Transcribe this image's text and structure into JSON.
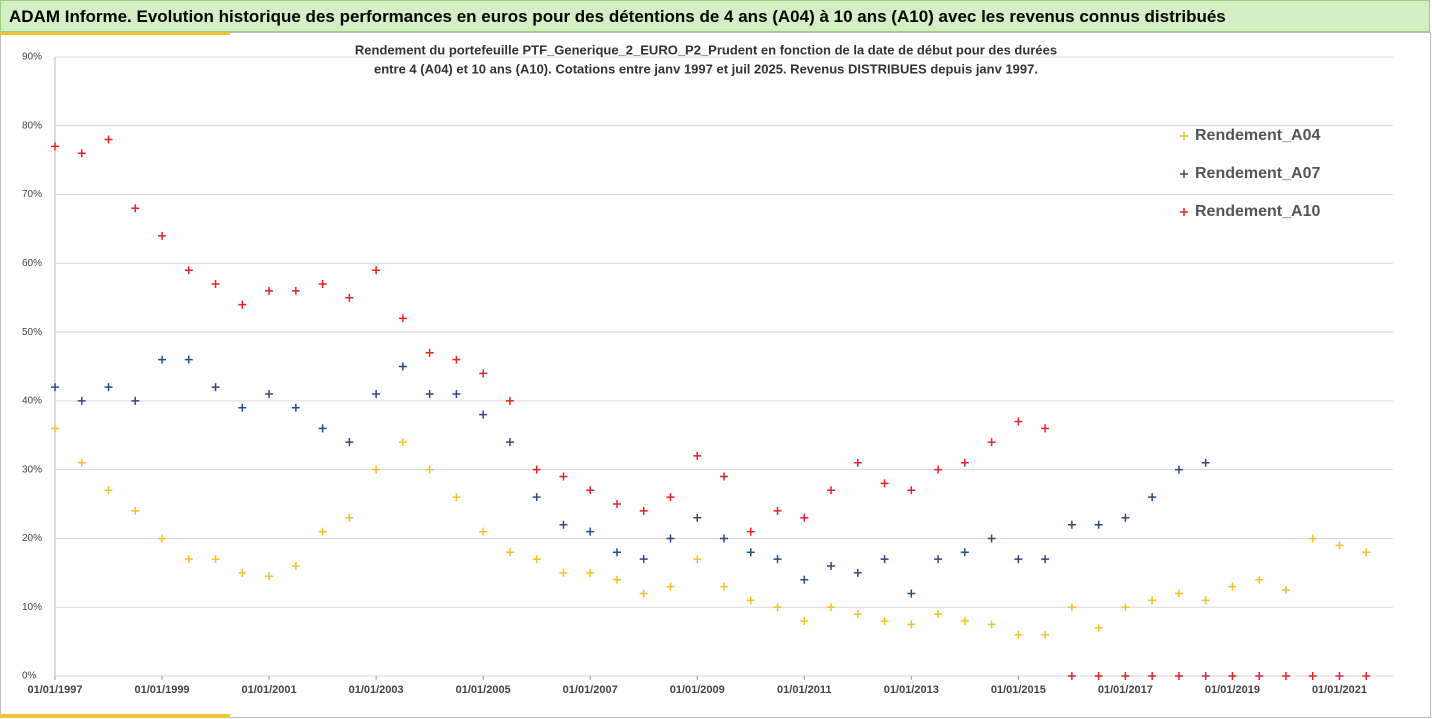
{
  "header": {
    "title": "ADAM Informe. Evolution historique des performances en euros pour des détentions de 4 ans (A04) à 10 ans (A10) avec les revenus connus distribués"
  },
  "chart_data": {
    "type": "scatter",
    "subtitle": [
      "Rendement du portefeuille PTF_Generique_2_EURO_P2_Prudent  en fonction de la date de début pour des durées",
      "entre 4 (A04) et 10 ans (A10). Cotations entre janv 1997 et juil 2025. Revenus DISTRIBUES depuis janv 1997."
    ],
    "x": [
      "01/01/1997",
      "01/07/1997",
      "01/01/1998",
      "01/07/1998",
      "01/01/1999",
      "01/07/1999",
      "01/01/2000",
      "01/07/2000",
      "01/01/2001",
      "01/07/2001",
      "01/01/2002",
      "01/07/2002",
      "01/01/2003",
      "01/07/2003",
      "01/01/2004",
      "01/07/2004",
      "01/01/2005",
      "01/07/2005",
      "01/01/2006",
      "01/07/2006",
      "01/01/2007",
      "01/07/2007",
      "01/01/2008",
      "01/07/2008",
      "01/01/2009",
      "01/07/2009",
      "01/01/2010",
      "01/07/2010",
      "01/01/2011",
      "01/07/2011",
      "01/01/2012",
      "01/07/2012",
      "01/01/2013",
      "01/07/2013",
      "01/01/2014",
      "01/07/2014",
      "01/01/2015",
      "01/07/2015",
      "01/01/2016",
      "01/07/2016",
      "01/01/2017",
      "01/07/2017",
      "01/01/2018",
      "01/07/2018",
      "01/01/2019",
      "01/07/2019",
      "01/01/2020",
      "01/07/2020",
      "01/01/2021",
      "01/07/2021"
    ],
    "series": [
      {
        "name": "Rendement_A04",
        "color": "#f5c02a",
        "values": [
          36,
          31,
          27,
          24,
          20,
          17,
          17,
          15,
          14.5,
          16,
          21,
          23,
          30,
          34,
          30,
          26,
          21,
          18,
          17,
          15,
          15,
          14,
          12,
          13,
          17,
          13,
          11,
          10,
          8,
          10,
          9,
          8,
          7.5,
          9,
          8,
          7.5,
          6,
          6,
          10,
          7,
          10,
          11,
          12,
          11,
          13,
          14,
          12.5,
          20,
          19,
          18
        ]
      },
      {
        "name": "Rendement_A07",
        "color": "#2e4a7a",
        "values": [
          42,
          40,
          42,
          40,
          46,
          46,
          42,
          39,
          41,
          39,
          36,
          34,
          41,
          45,
          41,
          41,
          38,
          34,
          26,
          22,
          21,
          18,
          17,
          20,
          23,
          20,
          18,
          17,
          14,
          16,
          15,
          17,
          12,
          17,
          18,
          20,
          17,
          17,
          22,
          22,
          23,
          26,
          30,
          31,
          null,
          null,
          null,
          null,
          null,
          null
        ]
      },
      {
        "name": "Rendement_A10",
        "color": "#e8202a",
        "values": [
          77,
          76,
          78,
          68,
          64,
          59,
          57,
          54,
          56,
          56,
          57,
          55,
          59,
          52,
          47,
          46,
          44,
          40,
          30,
          29,
          27,
          25,
          24,
          26,
          32,
          29,
          21,
          24,
          23,
          27,
          31,
          28,
          27,
          30,
          31,
          34,
          37,
          36,
          0,
          0,
          0,
          0,
          0,
          0,
          0,
          0,
          0,
          0,
          0,
          0
        ]
      }
    ],
    "xlim": [
      "01/01/1997",
      "01/01/2022"
    ],
    "xticks": [
      "01/01/1997",
      "01/01/1999",
      "01/01/2001",
      "01/01/2003",
      "01/01/2005",
      "01/01/2007",
      "01/01/2009",
      "01/01/2011",
      "01/01/2013",
      "01/01/2015",
      "01/01/2017",
      "01/01/2019",
      "01/01/2021"
    ],
    "ylim": [
      0,
      90
    ],
    "yticks": [
      {
        "value": 0,
        "label": "0%"
      },
      {
        "value": 10,
        "label": "10%"
      },
      {
        "value": 20,
        "label": "20%"
      },
      {
        "value": 30,
        "label": "30%"
      },
      {
        "value": 40,
        "label": "40%"
      },
      {
        "value": 50,
        "label": "50%"
      },
      {
        "value": 60,
        "label": "60%"
      },
      {
        "value": 70,
        "label": "70%"
      },
      {
        "value": 80,
        "label": "80%"
      },
      {
        "value": 90,
        "label": "90%"
      }
    ],
    "grid": true,
    "legend": "top-right"
  }
}
